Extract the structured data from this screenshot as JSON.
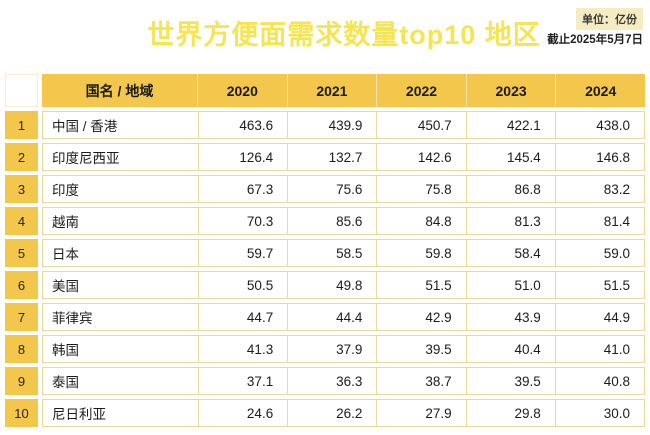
{
  "page": {
    "title": "世界方便面需求数量top10 地区",
    "unit_label": "单位：亿份",
    "date_label": "截止2025年5月7日"
  },
  "colors": {
    "title_yellow": "#F6E553",
    "header_gold": "#F3C74C",
    "row_border": "#EADA9A",
    "unit_badge_bg": "#F6ECC2",
    "text": "#1c1c1c"
  },
  "chart_data": {
    "type": "table",
    "title": "世界方便面需求数量top10 地区",
    "unit": "亿份",
    "as_of": "截止2025年5月7日",
    "columns": [
      "国名 / 地域",
      "2020",
      "2021",
      "2022",
      "2023",
      "2024"
    ],
    "rows": [
      {
        "rank": 1,
        "region": "中国 / 香港",
        "values": [
          463.6,
          439.9,
          450.7,
          422.1,
          438.0
        ]
      },
      {
        "rank": 2,
        "region": "印度尼西亚",
        "values": [
          126.4,
          132.7,
          142.6,
          145.4,
          146.8
        ]
      },
      {
        "rank": 3,
        "region": "印度",
        "values": [
          67.3,
          75.6,
          75.8,
          86.8,
          83.2
        ]
      },
      {
        "rank": 4,
        "region": "越南",
        "values": [
          70.3,
          85.6,
          84.8,
          81.3,
          81.4
        ]
      },
      {
        "rank": 5,
        "region": "日本",
        "values": [
          59.7,
          58.5,
          59.8,
          58.4,
          59.0
        ]
      },
      {
        "rank": 6,
        "region": "美国",
        "values": [
          50.5,
          49.8,
          51.5,
          51.0,
          51.5
        ]
      },
      {
        "rank": 7,
        "region": "菲律宾",
        "values": [
          44.7,
          44.4,
          42.9,
          43.9,
          44.9
        ]
      },
      {
        "rank": 8,
        "region": "韩国",
        "values": [
          41.3,
          37.9,
          39.5,
          40.4,
          41.0
        ]
      },
      {
        "rank": 9,
        "region": "泰国",
        "values": [
          37.1,
          36.3,
          38.7,
          39.5,
          40.8
        ]
      },
      {
        "rank": 10,
        "region": "尼日利亚",
        "values": [
          24.6,
          26.2,
          27.9,
          29.8,
          30.0
        ]
      }
    ]
  }
}
